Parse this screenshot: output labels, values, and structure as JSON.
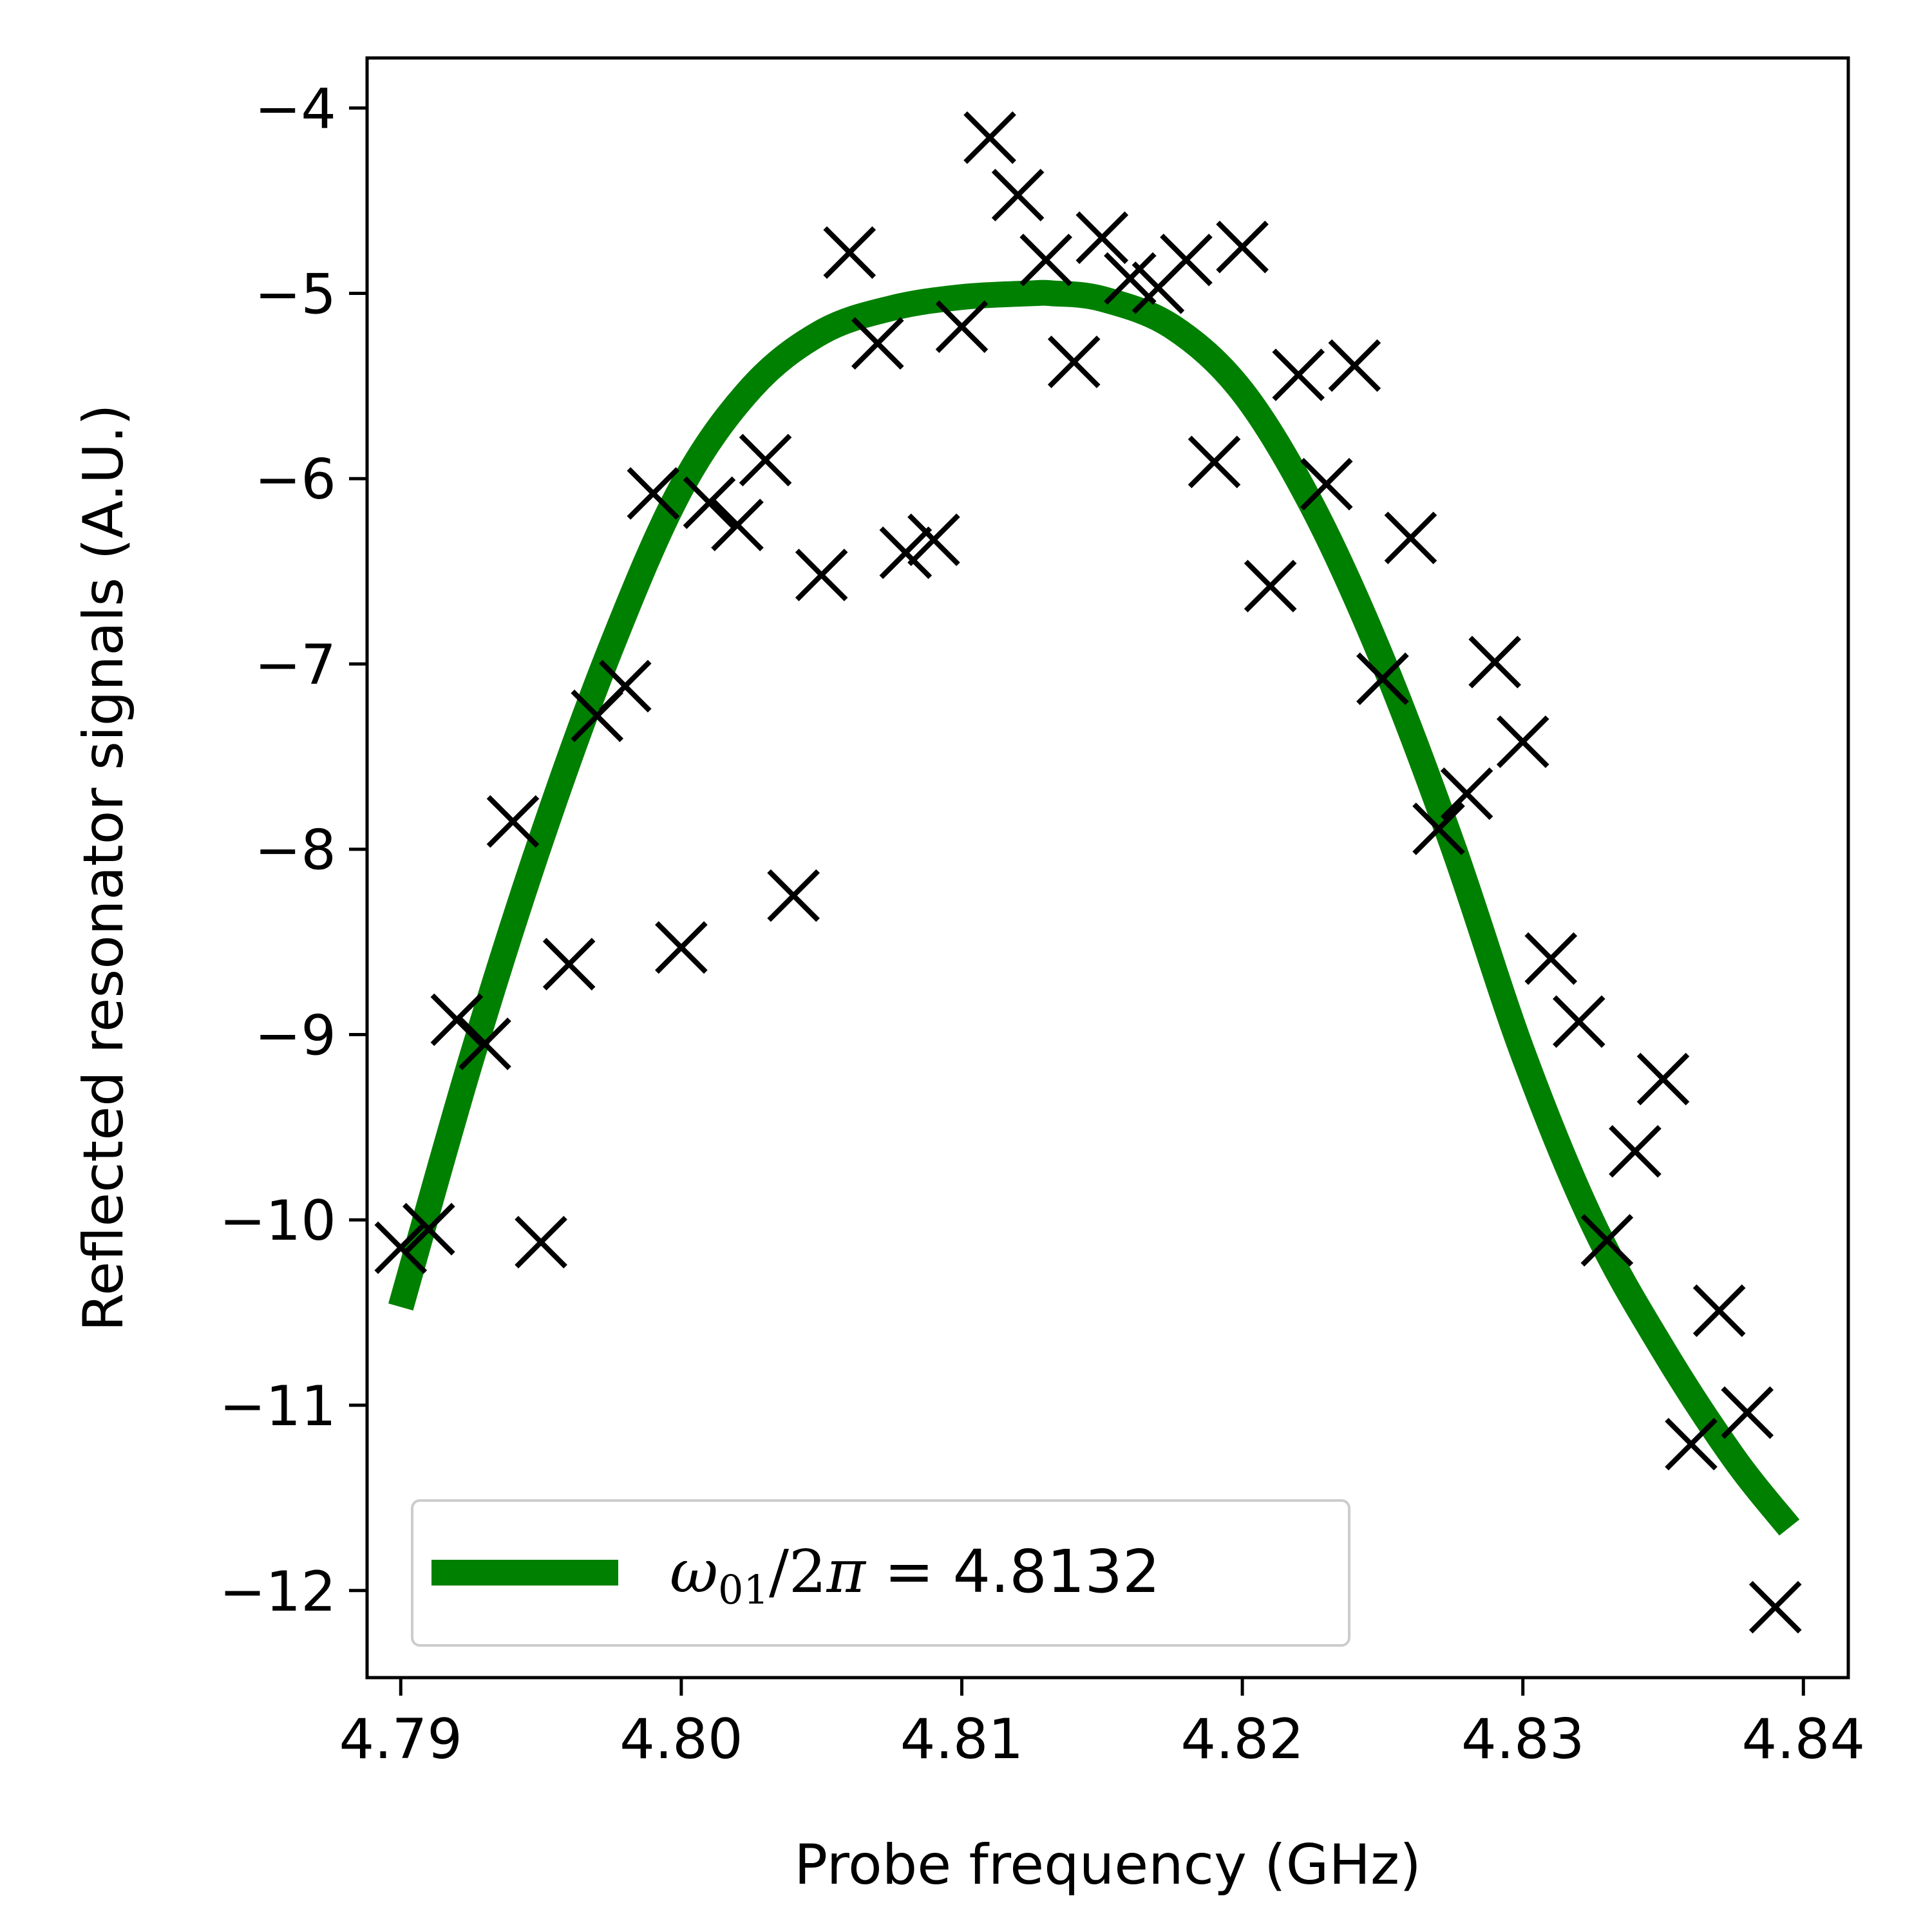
{
  "chart_data": {
    "type": "scatter",
    "xlabel": "Probe frequency (GHz)",
    "ylabel": "Reflected resonator signals (A.U.)",
    "xlim": [
      4.7888,
      4.8416
    ],
    "ylim": [
      -12.47,
      -3.73
    ],
    "x_ticks": [
      4.79,
      4.8,
      4.81,
      4.82,
      4.83,
      4.84
    ],
    "x_tick_labels": [
      "4.79",
      "4.80",
      "4.81",
      "4.82",
      "4.83",
      "4.84"
    ],
    "y_ticks": [
      -4,
      -5,
      -6,
      -7,
      -8,
      -9,
      -10,
      -11,
      -12
    ],
    "y_tick_labels": [
      "−4",
      "−5",
      "−6",
      "−7",
      "−8",
      "−9",
      "−10",
      "−11",
      "−12"
    ],
    "grid": false,
    "legend": {
      "placement": "lower-left",
      "label_omega": "ω",
      "label_subscript": "01",
      "label_slash": "/2",
      "label_pi": "π",
      "label_value": " = 4.8132"
    },
    "series": [
      {
        "kind": "scatter",
        "marker": "x",
        "color": "#000000",
        "points": [
          [
            4.79,
            -10.15
          ],
          [
            4.791,
            -10.05
          ],
          [
            4.792,
            -8.92
          ],
          [
            4.793,
            -9.05
          ],
          [
            4.794,
            -7.85
          ],
          [
            4.795,
            -10.12
          ],
          [
            4.796,
            -8.62
          ],
          [
            4.797,
            -7.28
          ],
          [
            4.798,
            -7.12
          ],
          [
            4.799,
            -6.08
          ],
          [
            4.8,
            -8.53
          ],
          [
            4.801,
            -6.13
          ],
          [
            4.802,
            -6.25
          ],
          [
            4.803,
            -5.9
          ],
          [
            4.804,
            -8.25
          ],
          [
            4.805,
            -6.52
          ],
          [
            4.806,
            -4.78
          ],
          [
            4.807,
            -5.27
          ],
          [
            4.808,
            -6.4
          ],
          [
            4.809,
            -6.33
          ],
          [
            4.81,
            -5.18
          ],
          [
            4.811,
            -4.16
          ],
          [
            4.812,
            -4.47
          ],
          [
            4.813,
            -4.82
          ],
          [
            4.814,
            -5.37
          ],
          [
            4.815,
            -4.7
          ],
          [
            4.816,
            -4.92
          ],
          [
            4.817,
            -4.97
          ],
          [
            4.818,
            -4.82
          ],
          [
            4.819,
            -5.91
          ],
          [
            4.82,
            -4.75
          ],
          [
            4.821,
            -6.58
          ],
          [
            4.822,
            -5.44
          ],
          [
            4.823,
            -6.03
          ],
          [
            4.824,
            -5.39
          ],
          [
            4.825,
            -7.08
          ],
          [
            4.826,
            -6.32
          ],
          [
            4.827,
            -7.89
          ],
          [
            4.828,
            -7.7
          ],
          [
            4.829,
            -6.99
          ],
          [
            4.83,
            -7.42
          ],
          [
            4.831,
            -8.59
          ],
          [
            4.832,
            -8.93
          ],
          [
            4.833,
            -10.11
          ],
          [
            4.834,
            -9.63
          ],
          [
            4.835,
            -9.24
          ],
          [
            4.836,
            -11.21
          ],
          [
            4.837,
            -10.49
          ],
          [
            4.838,
            -11.04
          ],
          [
            4.839,
            -12.09
          ]
        ]
      },
      {
        "kind": "fit",
        "color": "#008000",
        "x": [
          4.79,
          4.7925,
          4.795,
          4.7975,
          4.8,
          4.8025,
          4.805,
          4.8075,
          4.81,
          4.8125,
          4.8132,
          4.815,
          4.8175,
          4.82,
          4.8225,
          4.825,
          4.8275,
          4.83,
          4.8325,
          4.835,
          4.8375,
          4.8395
        ],
        "y": [
          -10.47,
          -9.14,
          -7.95,
          -6.91,
          -6.05,
          -5.51,
          -5.21,
          -5.08,
          -5.02,
          -5.0,
          -5.0,
          -5.03,
          -5.18,
          -5.53,
          -6.15,
          -6.98,
          -7.98,
          -9.1,
          -10.02,
          -10.7,
          -11.28,
          -11.66
        ]
      }
    ]
  }
}
